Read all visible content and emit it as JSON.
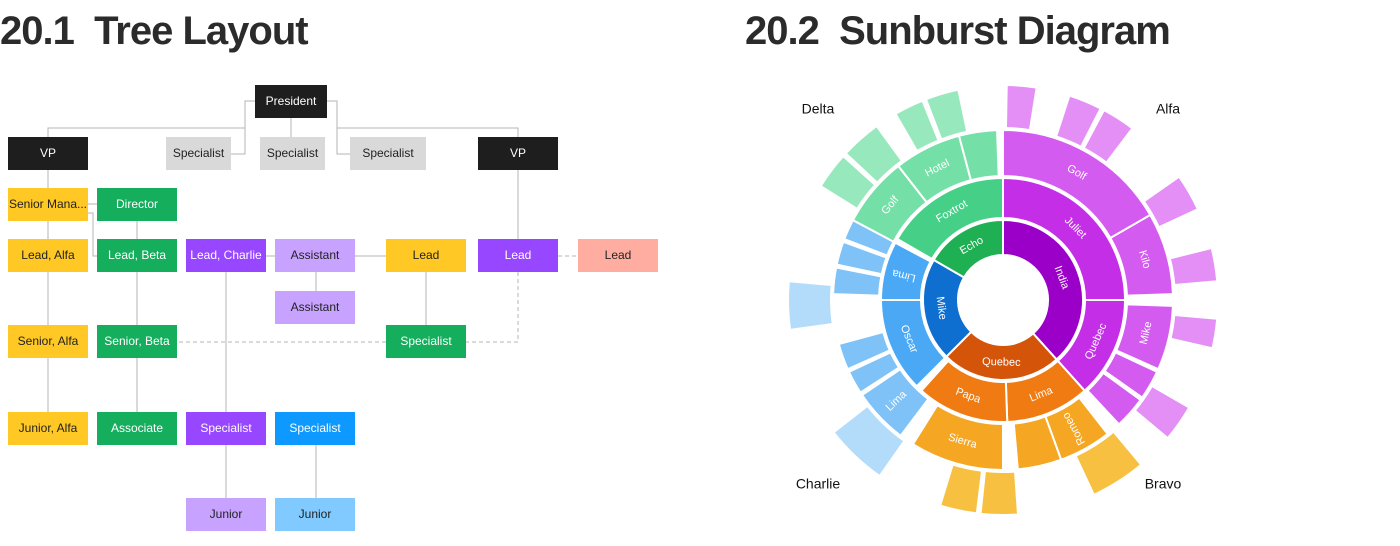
{
  "header": {
    "tree_title": "20.1  Tree Layout",
    "sunburst_title": "20.2  Sunburst Diagram"
  },
  "tree": {
    "nodes": [
      "President",
      "VP",
      "Specialist",
      "Specialist",
      "Specialist",
      "VP",
      "Senior Mana...",
      "Director",
      "Lead, Alfa",
      "Lead, Beta",
      "Lead, Charlie",
      "Assistant",
      "Lead",
      "Lead",
      "Lead",
      "Assistant",
      "Senior, Alfa",
      "Senior, Beta",
      "Specialist",
      "Junior, Alfa",
      "Associate",
      "Specialist",
      "Specialist",
      "Junior",
      "Junior"
    ]
  },
  "sunburst": {
    "corner_labels": [
      "Delta",
      "Alfa",
      "Charlie",
      "Bravo"
    ],
    "segments": [
      "Echo",
      "Foxtrot",
      "Golf",
      "Hotel",
      "India",
      "Juliet",
      "Quebec",
      "Golf",
      "Kilo",
      "Mike",
      "Quebec",
      "Lima",
      "Papa",
      "Romeo",
      "Sierra",
      "Mike",
      "Oscar",
      "Lima",
      "Lima"
    ]
  }
}
